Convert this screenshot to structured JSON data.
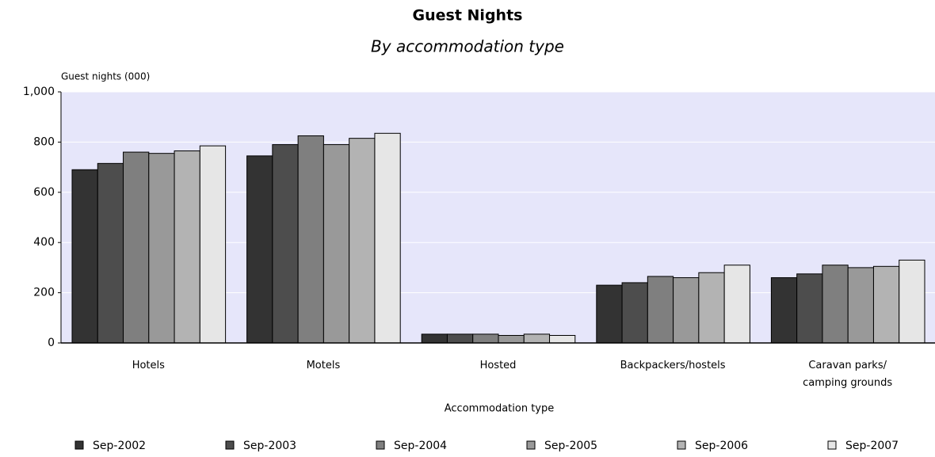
{
  "chart_data": {
    "type": "bar",
    "title": "Guest Nights",
    "subtitle": "By accommodation type",
    "y_axis_label": "Guest nights (000)",
    "x_axis_label": "Accommodation type",
    "categories": [
      "Hotels",
      "Motels",
      "Hosted",
      "Backpackers/hostels",
      "Caravan parks/ camping grounds"
    ],
    "series": [
      {
        "name": "Sep-2002",
        "color": "#333333",
        "values": [
          690,
          745,
          35,
          230,
          260
        ]
      },
      {
        "name": "Sep-2003",
        "color": "#4d4d4d",
        "values": [
          715,
          790,
          35,
          240,
          275
        ]
      },
      {
        "name": "Sep-2004",
        "color": "#7f7f7f",
        "values": [
          760,
          825,
          35,
          265,
          310
        ]
      },
      {
        "name": "Sep-2005",
        "color": "#999999",
        "values": [
          755,
          790,
          30,
          260,
          300
        ]
      },
      {
        "name": "Sep-2006",
        "color": "#b3b3b3",
        "values": [
          765,
          815,
          35,
          280,
          305
        ]
      },
      {
        "name": "Sep-2007",
        "color": "#e6e6e6",
        "values": [
          785,
          835,
          30,
          310,
          330
        ]
      }
    ],
    "ylim": [
      0,
      1000
    ],
    "yticks": [
      0,
      200,
      400,
      600,
      800,
      {
        "value": 1000,
        "label": "1,000"
      }
    ],
    "grid": true,
    "legend": "bottom"
  }
}
